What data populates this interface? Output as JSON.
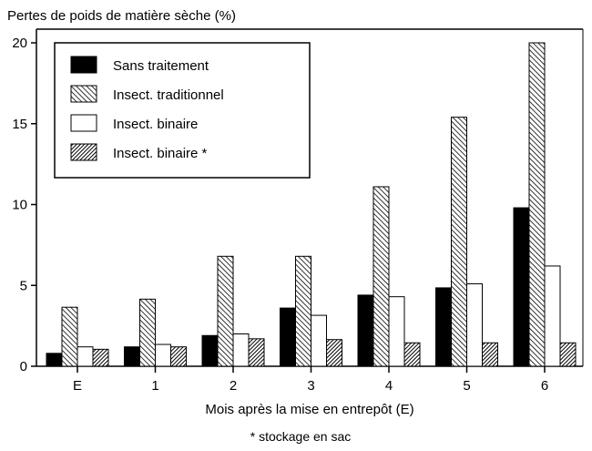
{
  "chart_data": {
    "type": "bar",
    "title": "Pertes de poids de matière sèche (%)",
    "xlabel": "Mois après la mise en entrepôt (E)",
    "ylabel": "Pertes de poids de matière sèche (%)",
    "footnote": "* stockage en sac",
    "categories": [
      "E",
      "1",
      "2",
      "3",
      "4",
      "5",
      "6"
    ],
    "ylim": [
      0,
      20
    ],
    "yticks": [
      0,
      5,
      10,
      15,
      20
    ],
    "grid": false,
    "legend_position": "top-left",
    "series": [
      {
        "name": "Sans traitement",
        "fill": "solid-black",
        "values": [
          0.8,
          1.2,
          1.9,
          3.6,
          4.4,
          4.85,
          9.8
        ]
      },
      {
        "name": "Insect. traditionnel",
        "fill": "hatch-light",
        "values": [
          3.65,
          4.15,
          6.8,
          6.8,
          11.1,
          15.4,
          20.0
        ]
      },
      {
        "name": "Insect. binaire",
        "fill": "white",
        "values": [
          1.2,
          1.35,
          2.0,
          3.15,
          4.3,
          5.1,
          6.2
        ]
      },
      {
        "name": "Insect. binaire *",
        "fill": "hatch-dark",
        "values": [
          1.05,
          1.2,
          1.7,
          1.65,
          1.45,
          1.45,
          1.45
        ]
      }
    ]
  }
}
